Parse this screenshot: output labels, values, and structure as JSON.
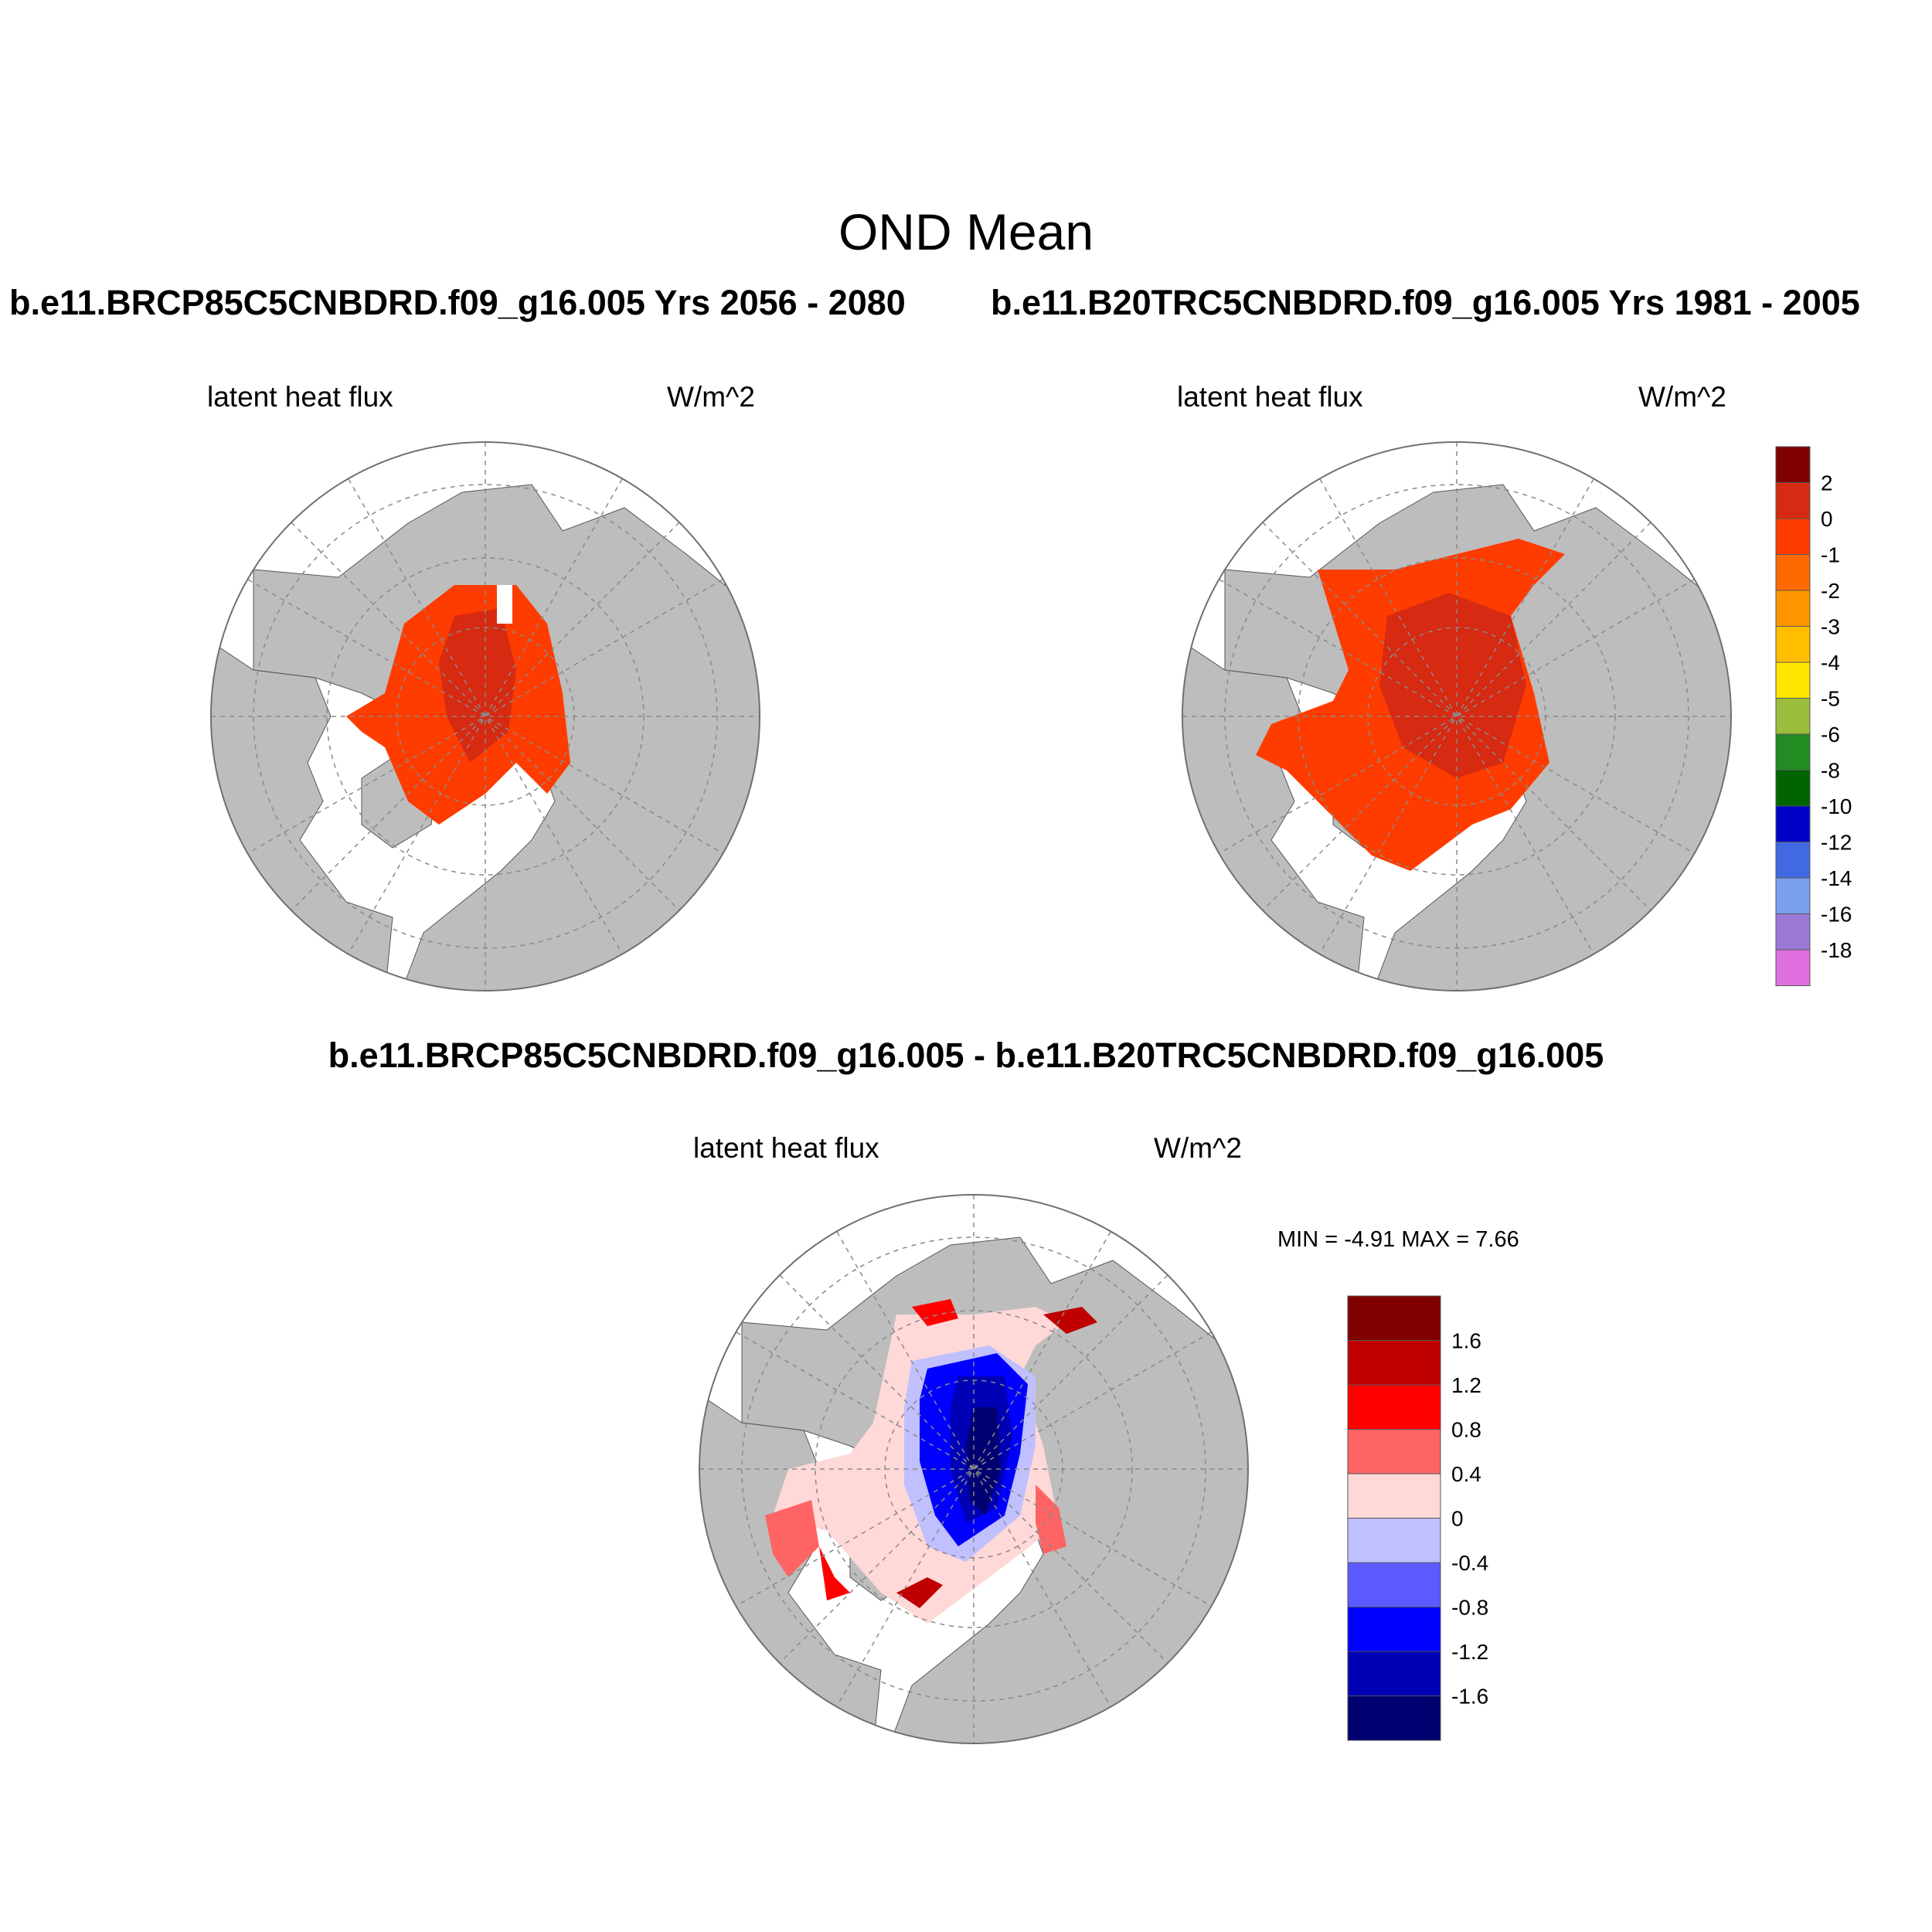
{
  "page": {
    "title": "OND Mean",
    "case1_title": "b.e11.BRCP85C5CNBDRD.f09_g16.005  Yrs 2056 - 2080",
    "case2_title": "b.e11.B20TRC5CNBDRD.f09_g16.005  Yrs 1981 - 2005",
    "diff_title": "b.e11.BRCP85C5CNBDRD.f09_g16.005 - b.e11.B20TRC5CNBDRD.f09_g16.005"
  },
  "panels": {
    "p1": {
      "left": "latent heat flux",
      "right": "W/m^2"
    },
    "p2": {
      "left": "latent heat flux",
      "right": "W/m^2"
    },
    "diff": {
      "left": "latent heat flux",
      "right": "W/m^2",
      "minmax": "MIN =  -4.91 MAX =   7.66"
    }
  },
  "colorbar_main": {
    "labels": [
      "2",
      "0",
      "-1",
      "-2",
      "-3",
      "-4",
      "-5",
      "-6",
      "-8",
      "-10",
      "-12",
      "-14",
      "-16",
      "-18"
    ],
    "colors": [
      "#7f0000",
      "#d62a12",
      "#ff3c00",
      "#ff6a00",
      "#ff9600",
      "#ffbe00",
      "#ffe600",
      "#9cbe3c",
      "#228b22",
      "#006400",
      "#0000c8",
      "#4169e1",
      "#7b9fef",
      "#9a7ad6",
      "#e070e0"
    ]
  },
  "colorbar_diff": {
    "labels": [
      "1.6",
      "1.2",
      "0.8",
      "0.4",
      "0",
      "-0.4",
      "-0.8",
      "-1.2",
      "-1.6"
    ],
    "colors": [
      "#800000",
      "#c00000",
      "#ff0000",
      "#ff6464",
      "#ffd8d8",
      "#c0c0ff",
      "#5a5aff",
      "#0000ff",
      "#0000b4",
      "#000070"
    ]
  },
  "map_colors": {
    "land": "#bdbdbd",
    "ocean": "#ffffff",
    "grid": "#8a8a8a"
  }
}
